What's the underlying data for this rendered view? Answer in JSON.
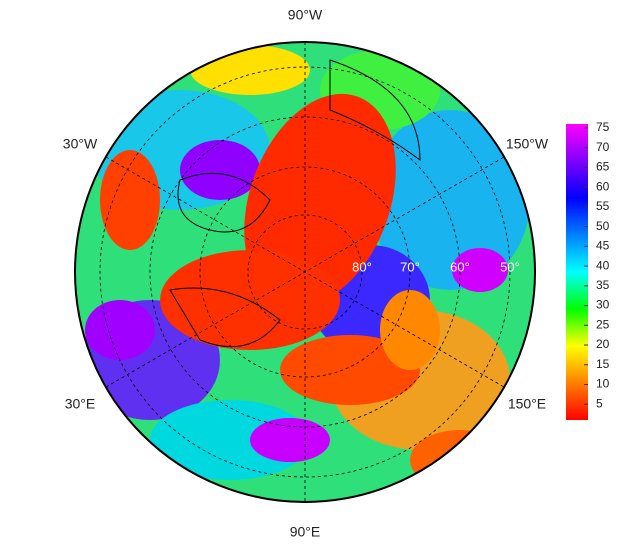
{
  "map": {
    "longitude_labels": [
      "90°W",
      "30°W",
      "150°W",
      "30°E",
      "150°E",
      "90°E"
    ],
    "latitude_labels": [
      "80°",
      "70°",
      "60°",
      "50°"
    ],
    "colorbar": {
      "lim": [
        1,
        76
      ],
      "ticks": [
        5,
        10,
        15,
        20,
        25,
        30,
        35,
        40,
        45,
        50,
        55,
        60,
        65,
        70,
        75
      ],
      "colors": [
        "#ff0000",
        "#ff8000",
        "#ffff00",
        "#00ff00",
        "#00ffff",
        "#0080ff",
        "#0000ff",
        "#8000ff",
        "#ff00ff"
      ]
    }
  }
}
